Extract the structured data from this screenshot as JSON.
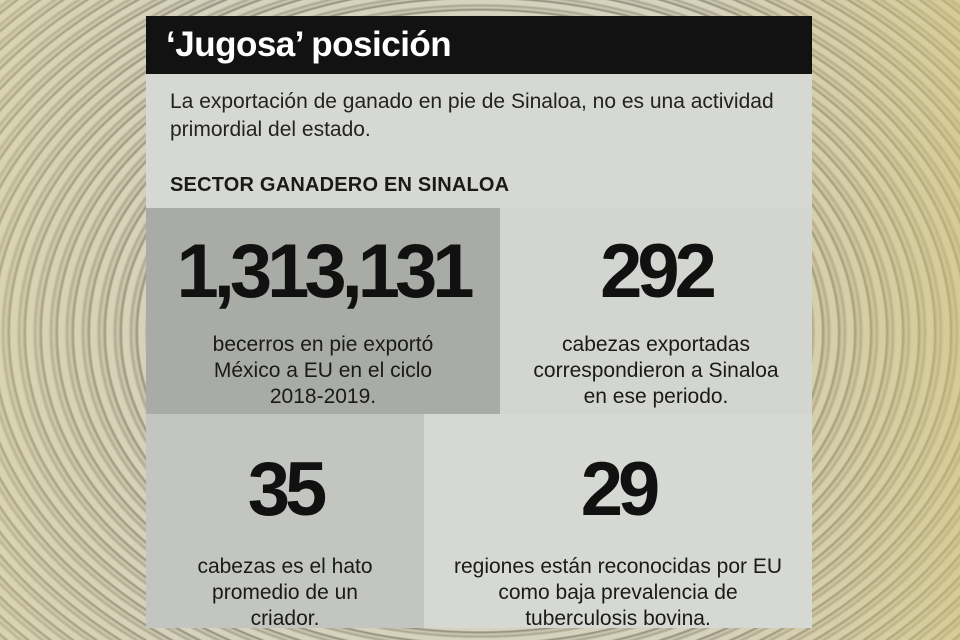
{
  "title": "‘Jugosa’ posición",
  "subtitle": "La exportación de ganado en pie de Sinaloa, no es una actividad primordial del estado.",
  "section_label": "SECTOR GANADERO EN SINALOA",
  "stats": [
    {
      "value": "1,313,131",
      "description": "becerros en pie exportó México a EU en el ciclo 2018-2019."
    },
    {
      "value": "292",
      "description": "cabezas exportadas correspondieron a Sinaloa en ese periodo."
    },
    {
      "value": "35",
      "description": "cabezas es el hato promedio de un criador."
    },
    {
      "value": "29",
      "description": "regiones están reconocidas por EU como baja prevalencia de tuberculosis bovina."
    }
  ],
  "colors": {
    "title_bar": "#121212",
    "card": "#d6d8d3",
    "highlight_panel": "#a9aca6"
  }
}
